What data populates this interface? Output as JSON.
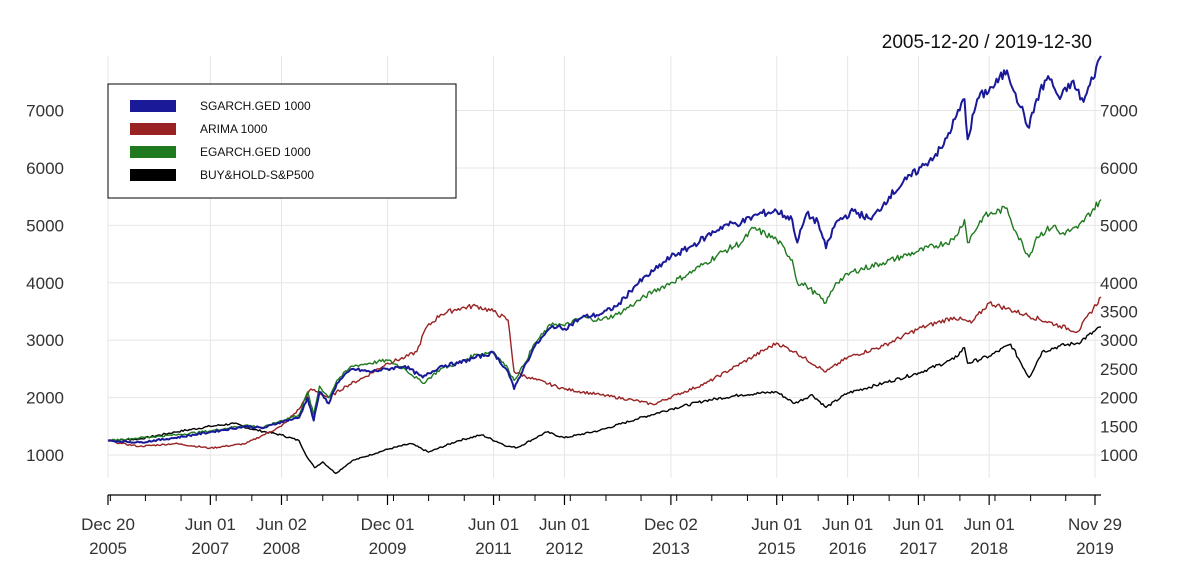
{
  "chart_data": {
    "type": "line",
    "title": "2005-12-20 / 2019-12-30",
    "grid": true,
    "legend_position": "top-left",
    "left_axis": {
      "ylim": [
        600,
        7950
      ],
      "ticks": [
        1000,
        2000,
        3000,
        4000,
        5000,
        6000,
        7000
      ]
    },
    "right_axis": {
      "ticks": [
        1000,
        1500,
        2000,
        2500,
        3000,
        3500,
        4000,
        5000,
        6000,
        7000
      ]
    },
    "x_range": [
      "2005-12-20",
      "2019-12-30"
    ],
    "x_ticks": [
      {
        "date": "2005-12-20",
        "line1": "Dec 20",
        "line2": "2005"
      },
      {
        "date": "2007-06-01",
        "line1": "Jun 01",
        "line2": "2007"
      },
      {
        "date": "2008-06-02",
        "line1": "Jun 02",
        "line2": "2008"
      },
      {
        "date": "2009-12-01",
        "line1": "Dec 01",
        "line2": "2009"
      },
      {
        "date": "2011-06-01",
        "line1": "Jun 01",
        "line2": "2011"
      },
      {
        "date": "2012-06-01",
        "line1": "Jun 01",
        "line2": "2012"
      },
      {
        "date": "2013-12-02",
        "line1": "Dec 02",
        "line2": "2013"
      },
      {
        "date": "2015-06-01",
        "line1": "Jun 01",
        "line2": "2015"
      },
      {
        "date": "2016-06-01",
        "line1": "Jun 01",
        "line2": "2016"
      },
      {
        "date": "2017-06-01",
        "line1": "Jun 01",
        "line2": "2017"
      },
      {
        "date": "2018-06-01",
        "line1": "Jun 01",
        "line2": "2018"
      },
      {
        "date": "2019-11-29",
        "line1": "Nov 29",
        "line2": "2019"
      }
    ],
    "series": [
      {
        "name": "SGARCH.GED 1000",
        "color": "#1a1a99",
        "points": [
          [
            "2005-12-20",
            1250
          ],
          [
            "2006-06-01",
            1220
          ],
          [
            "2006-12-01",
            1300
          ],
          [
            "2007-06-01",
            1400
          ],
          [
            "2007-12-01",
            1500
          ],
          [
            "2008-03-01",
            1470
          ],
          [
            "2008-06-01",
            1580
          ],
          [
            "2008-09-01",
            1650
          ],
          [
            "2008-10-15",
            2000
          ],
          [
            "2008-11-15",
            1600
          ],
          [
            "2008-12-15",
            2100
          ],
          [
            "2009-02-01",
            1900
          ],
          [
            "2009-03-15",
            2250
          ],
          [
            "2009-06-01",
            2500
          ],
          [
            "2009-09-01",
            2450
          ],
          [
            "2009-12-01",
            2500
          ],
          [
            "2010-03-01",
            2550
          ],
          [
            "2010-06-01",
            2350
          ],
          [
            "2010-09-01",
            2550
          ],
          [
            "2010-12-01",
            2600
          ],
          [
            "2011-03-01",
            2700
          ],
          [
            "2011-06-01",
            2780
          ],
          [
            "2011-08-15",
            2450
          ],
          [
            "2011-09-15",
            2150
          ],
          [
            "2011-11-01",
            2500
          ],
          [
            "2012-01-01",
            2900
          ],
          [
            "2012-04-01",
            3250
          ],
          [
            "2012-06-01",
            3200
          ],
          [
            "2012-09-01",
            3400
          ],
          [
            "2012-12-01",
            3450
          ],
          [
            "2013-03-01",
            3600
          ],
          [
            "2013-06-01",
            3950
          ],
          [
            "2013-09-01",
            4200
          ],
          [
            "2013-12-01",
            4450
          ],
          [
            "2014-03-01",
            4600
          ],
          [
            "2014-06-01",
            4800
          ],
          [
            "2014-09-01",
            5000
          ],
          [
            "2014-12-01",
            5050
          ],
          [
            "2015-03-01",
            5200
          ],
          [
            "2015-06-01",
            5250
          ],
          [
            "2015-08-20",
            5100
          ],
          [
            "2015-09-15",
            4700
          ],
          [
            "2015-11-01",
            5200
          ],
          [
            "2016-01-01",
            5050
          ],
          [
            "2016-02-10",
            4600
          ],
          [
            "2016-04-01",
            5050
          ],
          [
            "2016-07-01",
            5250
          ],
          [
            "2016-10-01",
            5100
          ],
          [
            "2017-01-01",
            5500
          ],
          [
            "2017-04-01",
            5800
          ],
          [
            "2017-07-01",
            6050
          ],
          [
            "2017-10-01",
            6350
          ],
          [
            "2018-01-25",
            7200
          ],
          [
            "2018-02-10",
            6500
          ],
          [
            "2018-04-01",
            7200
          ],
          [
            "2018-07-01",
            7450
          ],
          [
            "2018-09-01",
            7700
          ],
          [
            "2018-10-15",
            7300
          ],
          [
            "2018-12-24",
            6700
          ],
          [
            "2019-02-01",
            7200
          ],
          [
            "2019-04-01",
            7600
          ],
          [
            "2019-06-01",
            7200
          ],
          [
            "2019-08-01",
            7500
          ],
          [
            "2019-10-01",
            7150
          ],
          [
            "2019-12-30",
            7950
          ]
        ]
      },
      {
        "name": "ARIMA 1000",
        "color": "#992222",
        "points": [
          [
            "2005-12-20",
            1250
          ],
          [
            "2006-03-01",
            1200
          ],
          [
            "2006-06-01",
            1150
          ],
          [
            "2006-12-01",
            1200
          ],
          [
            "2007-06-01",
            1120
          ],
          [
            "2007-12-01",
            1200
          ],
          [
            "2008-03-01",
            1350
          ],
          [
            "2008-06-01",
            1500
          ],
          [
            "2008-09-01",
            1800
          ],
          [
            "2008-11-01",
            2150
          ],
          [
            "2009-02-01",
            2000
          ],
          [
            "2009-05-01",
            2200
          ],
          [
            "2009-08-01",
            2350
          ],
          [
            "2009-12-01",
            2600
          ],
          [
            "2010-03-01",
            2700
          ],
          [
            "2010-05-01",
            2800
          ],
          [
            "2010-06-15",
            3200
          ],
          [
            "2010-09-01",
            3450
          ],
          [
            "2010-12-01",
            3550
          ],
          [
            "2011-03-01",
            3600
          ],
          [
            "2011-06-01",
            3500
          ],
          [
            "2011-08-15",
            3350
          ],
          [
            "2011-09-15",
            2450
          ],
          [
            "2011-12-01",
            2350
          ],
          [
            "2012-06-01",
            2150
          ],
          [
            "2012-12-01",
            2050
          ],
          [
            "2013-06-01",
            1950
          ],
          [
            "2013-09-01",
            1880
          ],
          [
            "2014-01-01",
            2050
          ],
          [
            "2014-06-01",
            2250
          ],
          [
            "2014-12-01",
            2600
          ],
          [
            "2015-06-01",
            2950
          ],
          [
            "2015-09-01",
            2800
          ],
          [
            "2016-02-10",
            2450
          ],
          [
            "2016-06-01",
            2700
          ],
          [
            "2016-12-01",
            2900
          ],
          [
            "2017-06-01",
            3200
          ],
          [
            "2017-12-01",
            3400
          ],
          [
            "2018-03-01",
            3300
          ],
          [
            "2018-06-01",
            3650
          ],
          [
            "2018-09-01",
            3550
          ],
          [
            "2018-12-01",
            3450
          ],
          [
            "2019-06-01",
            3250
          ],
          [
            "2019-09-01",
            3150
          ],
          [
            "2019-12-30",
            3750
          ]
        ]
      },
      {
        "name": "EGARCH.GED 1000",
        "color": "#1f7a1f",
        "points": [
          [
            "2005-12-20",
            1250
          ],
          [
            "2006-06-01",
            1300
          ],
          [
            "2006-12-01",
            1350
          ],
          [
            "2007-06-01",
            1420
          ],
          [
            "2007-12-01",
            1520
          ],
          [
            "2008-03-01",
            1480
          ],
          [
            "2008-06-01",
            1600
          ],
          [
            "2008-09-01",
            1700
          ],
          [
            "2008-10-15",
            2100
          ],
          [
            "2008-11-15",
            1700
          ],
          [
            "2008-12-15",
            2200
          ],
          [
            "2009-02-01",
            2000
          ],
          [
            "2009-03-15",
            2300
          ],
          [
            "2009-06-01",
            2550
          ],
          [
            "2009-09-01",
            2600
          ],
          [
            "2009-12-01",
            2650
          ],
          [
            "2010-03-01",
            2500
          ],
          [
            "2010-06-01",
            2250
          ],
          [
            "2010-09-01",
            2500
          ],
          [
            "2010-12-01",
            2600
          ],
          [
            "2011-03-01",
            2750
          ],
          [
            "2011-06-01",
            2800
          ],
          [
            "2011-08-15",
            2500
          ],
          [
            "2011-09-15",
            2300
          ],
          [
            "2011-11-01",
            2550
          ],
          [
            "2012-01-01",
            2950
          ],
          [
            "2012-04-01",
            3300
          ],
          [
            "2012-06-01",
            3250
          ],
          [
            "2012-09-01",
            3400
          ],
          [
            "2012-12-01",
            3350
          ],
          [
            "2013-03-01",
            3450
          ],
          [
            "2013-06-01",
            3650
          ],
          [
            "2013-09-01",
            3850
          ],
          [
            "2013-12-01",
            4000
          ],
          [
            "2014-03-01",
            4150
          ],
          [
            "2014-06-01",
            4350
          ],
          [
            "2014-09-01",
            4550
          ],
          [
            "2014-12-01",
            4700
          ],
          [
            "2015-02-01",
            4950
          ],
          [
            "2015-06-01",
            4750
          ],
          [
            "2015-08-20",
            4400
          ],
          [
            "2015-09-15",
            4000
          ],
          [
            "2015-11-01",
            3950
          ],
          [
            "2016-02-10",
            3650
          ],
          [
            "2016-04-01",
            4000
          ],
          [
            "2016-07-01",
            4200
          ],
          [
            "2016-12-01",
            4350
          ],
          [
            "2017-06-01",
            4550
          ],
          [
            "2017-12-01",
            4750
          ],
          [
            "2018-01-25",
            5100
          ],
          [
            "2018-02-10",
            4700
          ],
          [
            "2018-05-01",
            5150
          ],
          [
            "2018-09-01",
            5300
          ],
          [
            "2018-10-15",
            4900
          ],
          [
            "2018-12-24",
            4450
          ],
          [
            "2019-02-01",
            4800
          ],
          [
            "2019-05-01",
            5000
          ],
          [
            "2019-06-01",
            4850
          ],
          [
            "2019-09-01",
            4950
          ],
          [
            "2019-12-30",
            5450
          ]
        ]
      },
      {
        "name": "BUY&HOLD-S&P500",
        "color": "#000000",
        "points": [
          [
            "2005-12-20",
            1250
          ],
          [
            "2006-06-01",
            1280
          ],
          [
            "2006-12-01",
            1400
          ],
          [
            "2007-06-01",
            1500
          ],
          [
            "2007-10-01",
            1550
          ],
          [
            "2008-01-01",
            1450
          ],
          [
            "2008-06-01",
            1350
          ],
          [
            "2008-09-01",
            1250
          ],
          [
            "2008-10-15",
            950
          ],
          [
            "2008-11-20",
            780
          ],
          [
            "2009-01-01",
            880
          ],
          [
            "2009-03-09",
            680
          ],
          [
            "2009-06-01",
            900
          ],
          [
            "2009-12-01",
            1100
          ],
          [
            "2010-04-01",
            1200
          ],
          [
            "2010-07-01",
            1050
          ],
          [
            "2010-12-01",
            1250
          ],
          [
            "2011-04-01",
            1350
          ],
          [
            "2011-08-15",
            1150
          ],
          [
            "2011-10-01",
            1130
          ],
          [
            "2012-03-01",
            1400
          ],
          [
            "2012-06-01",
            1300
          ],
          [
            "2012-12-01",
            1430
          ],
          [
            "2013-06-01",
            1620
          ],
          [
            "2013-12-01",
            1800
          ],
          [
            "2014-06-01",
            1950
          ],
          [
            "2014-12-01",
            2050
          ],
          [
            "2015-06-01",
            2100
          ],
          [
            "2015-09-01",
            1900
          ],
          [
            "2015-12-01",
            2050
          ],
          [
            "2016-02-10",
            1830
          ],
          [
            "2016-06-01",
            2080
          ],
          [
            "2016-12-01",
            2250
          ],
          [
            "2017-06-01",
            2430
          ],
          [
            "2017-12-01",
            2670
          ],
          [
            "2018-01-25",
            2870
          ],
          [
            "2018-02-10",
            2600
          ],
          [
            "2018-06-01",
            2720
          ],
          [
            "2018-09-20",
            2930
          ],
          [
            "2018-12-24",
            2350
          ],
          [
            "2019-03-01",
            2800
          ],
          [
            "2019-06-01",
            2900
          ],
          [
            "2019-09-01",
            2950
          ],
          [
            "2019-12-30",
            3230
          ]
        ]
      }
    ]
  },
  "axis_geometry_note_removed": true
}
